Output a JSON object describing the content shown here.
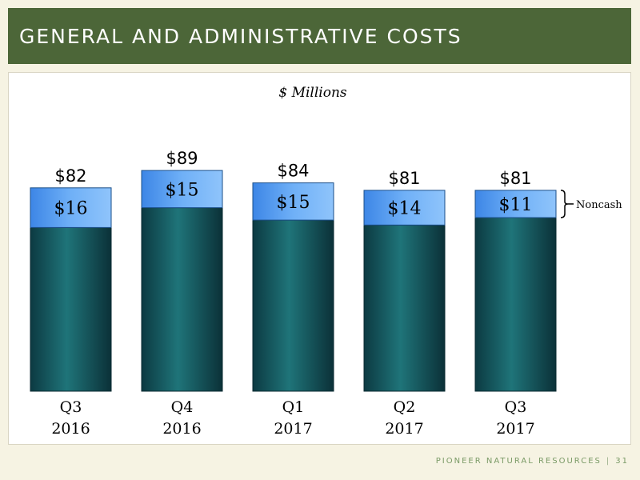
{
  "header": {
    "title": "GENERAL AND ADMINISTRATIVE COSTS"
  },
  "footer": {
    "company": "PIONEER NATURAL RESOURCES",
    "separator": "|",
    "page_number": "31"
  },
  "colors": {
    "title_bar": "#4c6638",
    "cash_segment": "#1d6f73",
    "noncash_segment": "#5aa3f2",
    "footer_text": "#7a9a66"
  },
  "chart_data": {
    "type": "bar",
    "stacked": true,
    "subtitle": "$ Millions",
    "categories": [
      [
        "Q3",
        "2016"
      ],
      [
        "Q4",
        "2016"
      ],
      [
        "Q1",
        "2017"
      ],
      [
        "Q2",
        "2017"
      ],
      [
        "Q3",
        "2017"
      ]
    ],
    "totals": [
      82,
      89,
      84,
      81,
      81
    ],
    "total_labels": [
      "$82",
      "$89",
      "$84",
      "$81",
      "$81"
    ],
    "series": [
      {
        "values": [
          66,
          74,
          69,
          67,
          70
        ]
      },
      {
        "name": "Noncash",
        "values": [
          16,
          15,
          15,
          14,
          11
        ],
        "labels": [
          "$16",
          "$15",
          "$15",
          "$14",
          "$11"
        ]
      }
    ],
    "annotation": {
      "text": "Noncash",
      "target_category_index": 4
    },
    "ylim": [
      0,
      100
    ],
    "grid": false
  }
}
